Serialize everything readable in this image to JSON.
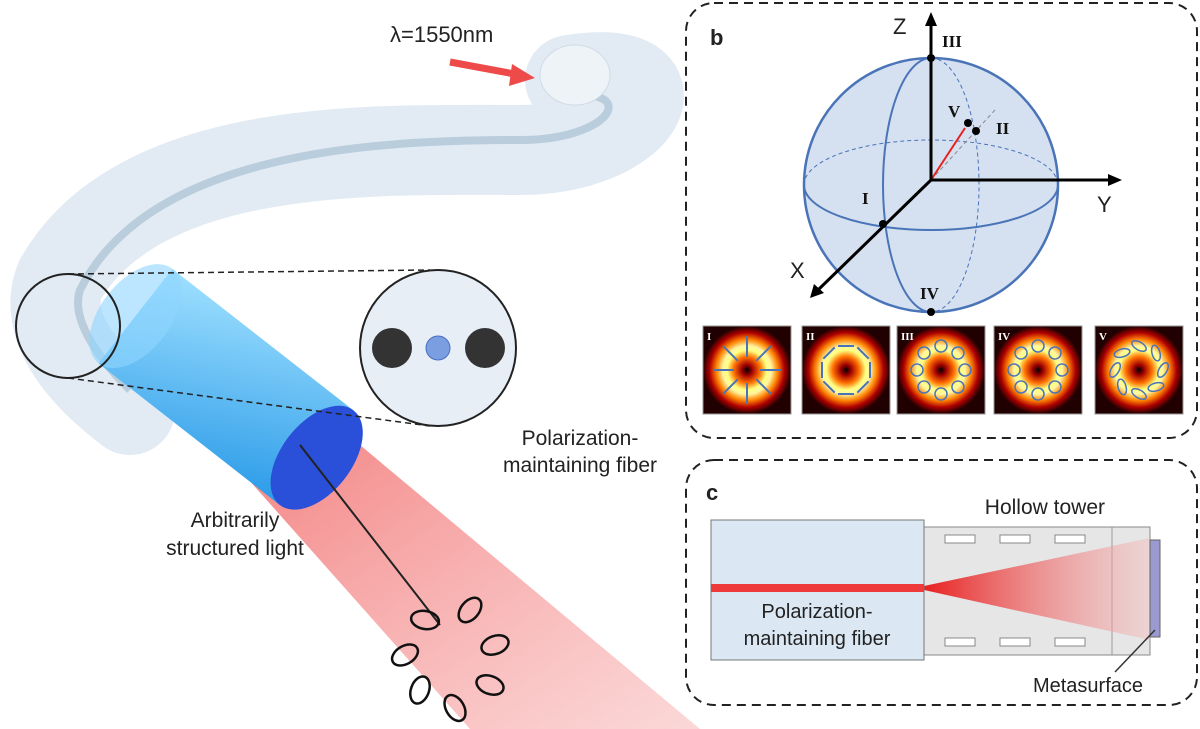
{
  "panel_a": {
    "wavelength": "λ=1550nm",
    "fiber_label_line1": "Polarization-",
    "fiber_label_line2": "maintaining fiber",
    "light_label_line1": "Arbitrarily",
    "light_label_line2": "structured light"
  },
  "panel_b": {
    "letter": "b",
    "axes": {
      "x": "X",
      "y": "Y",
      "z": "Z"
    },
    "points": [
      "I",
      "II",
      "III",
      "IV",
      "V"
    ],
    "modes": [
      "I",
      "II",
      "III",
      "IV",
      "V"
    ]
  },
  "panel_c": {
    "letter": "c",
    "tower_label": "Hollow tower",
    "fiber_label_line1": "Polarization-",
    "fiber_label_line2": "maintaining fiber",
    "metasurface_label": "Metasurface"
  },
  "colors": {
    "sphere": "#4a74b8",
    "beam": "#e8443f",
    "fiber": "#dde8f2",
    "metasurface": "#2a4fd8"
  }
}
